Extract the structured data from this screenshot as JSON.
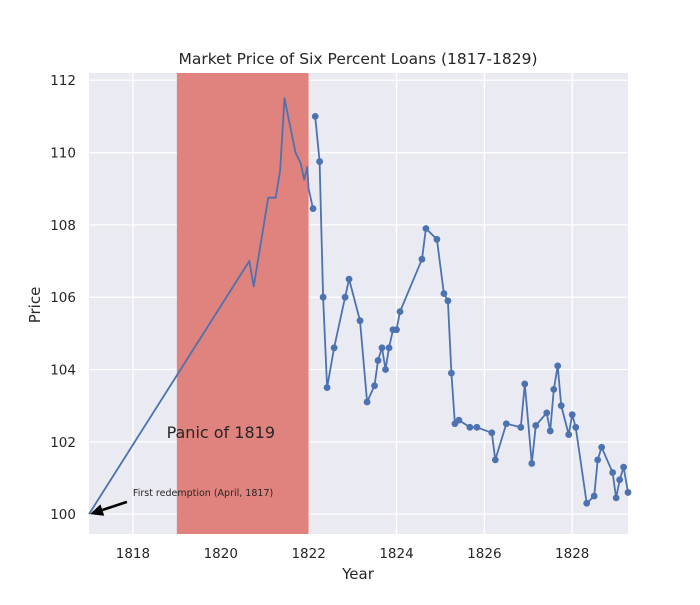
{
  "chart_data": {
    "type": "line",
    "title": "Market Price of Six Percent Loans (1817-1829)",
    "xlabel": "Year",
    "ylabel": "Price",
    "xlim": [
      1817.0,
      1829.27
    ],
    "ylim": [
      99.45,
      112.2
    ],
    "grid": true,
    "legend": "none",
    "x_ticks": [
      1818,
      1820,
      1822,
      1824,
      1826,
      1828
    ],
    "y_ticks": [
      100,
      102,
      104,
      106,
      108,
      110,
      112
    ],
    "x_tick_labels": [
      "1818",
      "1820",
      "1822",
      "1824",
      "1826",
      "1828"
    ],
    "y_tick_labels": [
      "100",
      "102",
      "104",
      "106",
      "108",
      "110",
      "112"
    ],
    "colors": {
      "background": "#eaeaf2",
      "grid": "#ffffff",
      "line": "#4c72b0",
      "band": "#e0827d"
    },
    "shaded_regions": [
      {
        "x_start": 1819.0,
        "x_end": 1822.0,
        "label": "Panic of 1819",
        "label_x": 1820.0,
        "label_y": 102.1
      }
    ],
    "annotations": [
      {
        "text": "First redemption (April, 1817)",
        "x": 1817.0,
        "y": 100.0,
        "text_x": 1818.0,
        "text_y": 100.45
      }
    ],
    "series": [
      {
        "values": [
          [
            1817.0,
            100.0
          ],
          [
            1820.65,
            107.0
          ],
          [
            1820.75,
            106.3
          ],
          [
            1820.98,
            108.0
          ],
          [
            1821.08,
            108.75
          ],
          [
            1821.25,
            108.75
          ],
          [
            1821.35,
            109.5
          ],
          [
            1821.45,
            111.5
          ],
          [
            1821.7,
            110.0
          ],
          [
            1821.82,
            109.7
          ],
          [
            1821.9,
            109.25
          ],
          [
            1821.97,
            109.6
          ],
          [
            1822.0,
            109.0
          ],
          [
            1822.1,
            108.45
          ]
        ],
        "markers_from": 1822.1
      },
      {
        "values": [
          [
            1822.15,
            111.0
          ],
          [
            1822.25,
            109.75
          ],
          [
            1822.33,
            106.0
          ],
          [
            1822.42,
            103.5
          ],
          [
            1822.58,
            104.6
          ],
          [
            1822.83,
            106.0
          ],
          [
            1822.92,
            106.5
          ],
          [
            1823.17,
            105.35
          ],
          [
            1823.33,
            103.1
          ],
          [
            1823.5,
            103.55
          ],
          [
            1823.58,
            104.25
          ],
          [
            1823.67,
            104.6
          ],
          [
            1823.75,
            104.0
          ],
          [
            1823.83,
            104.6
          ],
          [
            1823.92,
            105.1
          ],
          [
            1824.0,
            105.1
          ],
          [
            1824.08,
            105.6
          ],
          [
            1824.58,
            107.05
          ],
          [
            1824.67,
            107.9
          ],
          [
            1824.92,
            107.6
          ],
          [
            1825.08,
            106.1
          ],
          [
            1825.17,
            105.9
          ],
          [
            1825.25,
            103.9
          ],
          [
            1825.33,
            102.5
          ],
          [
            1825.42,
            102.6
          ],
          [
            1825.67,
            102.4
          ],
          [
            1825.83,
            102.4
          ],
          [
            1826.17,
            102.25
          ],
          [
            1826.25,
            101.5
          ],
          [
            1826.5,
            102.5
          ],
          [
            1826.83,
            102.4
          ],
          [
            1826.92,
            103.6
          ],
          [
            1827.08,
            101.4
          ],
          [
            1827.17,
            102.45
          ],
          [
            1827.42,
            102.8
          ],
          [
            1827.5,
            102.3
          ],
          [
            1827.58,
            103.45
          ],
          [
            1827.67,
            104.1
          ],
          [
            1827.75,
            103.0
          ],
          [
            1827.92,
            102.2
          ],
          [
            1828.0,
            102.75
          ],
          [
            1828.08,
            102.4
          ],
          [
            1828.33,
            100.3
          ],
          [
            1828.5,
            100.5
          ],
          [
            1828.58,
            101.5
          ],
          [
            1828.67,
            101.85
          ],
          [
            1828.92,
            101.15
          ],
          [
            1829.0,
            100.45
          ],
          [
            1829.08,
            100.95
          ],
          [
            1829.17,
            101.3
          ],
          [
            1829.27,
            100.6
          ]
        ],
        "markers": true
      }
    ]
  }
}
